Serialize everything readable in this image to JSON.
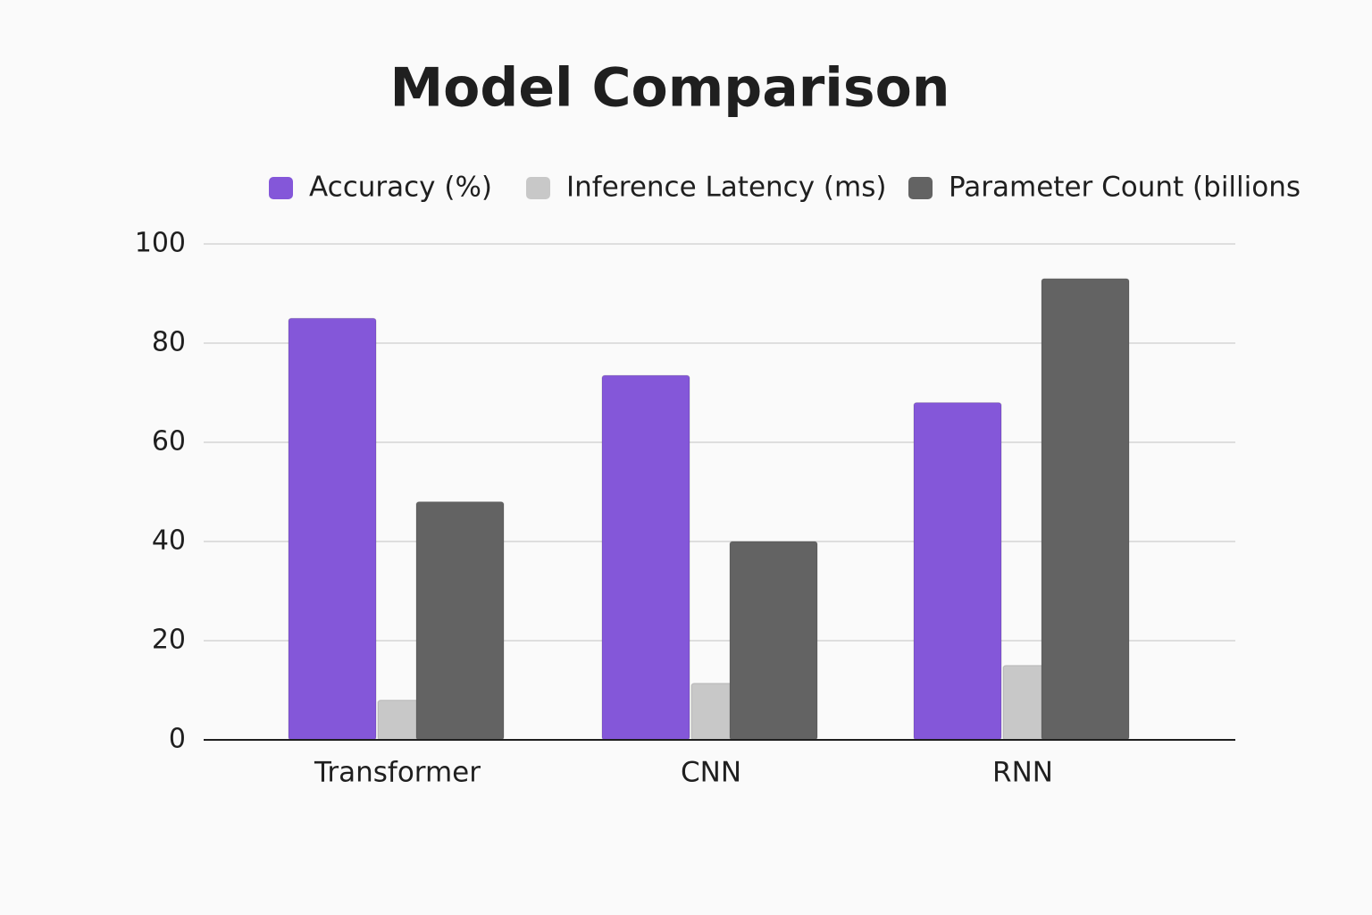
{
  "chart_data": {
    "type": "bar",
    "title": "Model Comparison",
    "categories": [
      "Transformer",
      "CNN",
      "RNN"
    ],
    "series": [
      {
        "name": "Accuracy (%)",
        "color": "#8457d9",
        "values": [
          85,
          73.5,
          68
        ]
      },
      {
        "name": "Inference Latency (ms)",
        "color": "#c8c8c8",
        "values": [
          8,
          11.4,
          15
        ]
      },
      {
        "name": "Parameter Count (billions",
        "color": "#636363",
        "values": [
          48,
          40,
          93
        ]
      }
    ],
    "ylim": [
      0,
      100
    ],
    "yticks": [
      0,
      20,
      40,
      60,
      80,
      100
    ],
    "grid": true
  }
}
